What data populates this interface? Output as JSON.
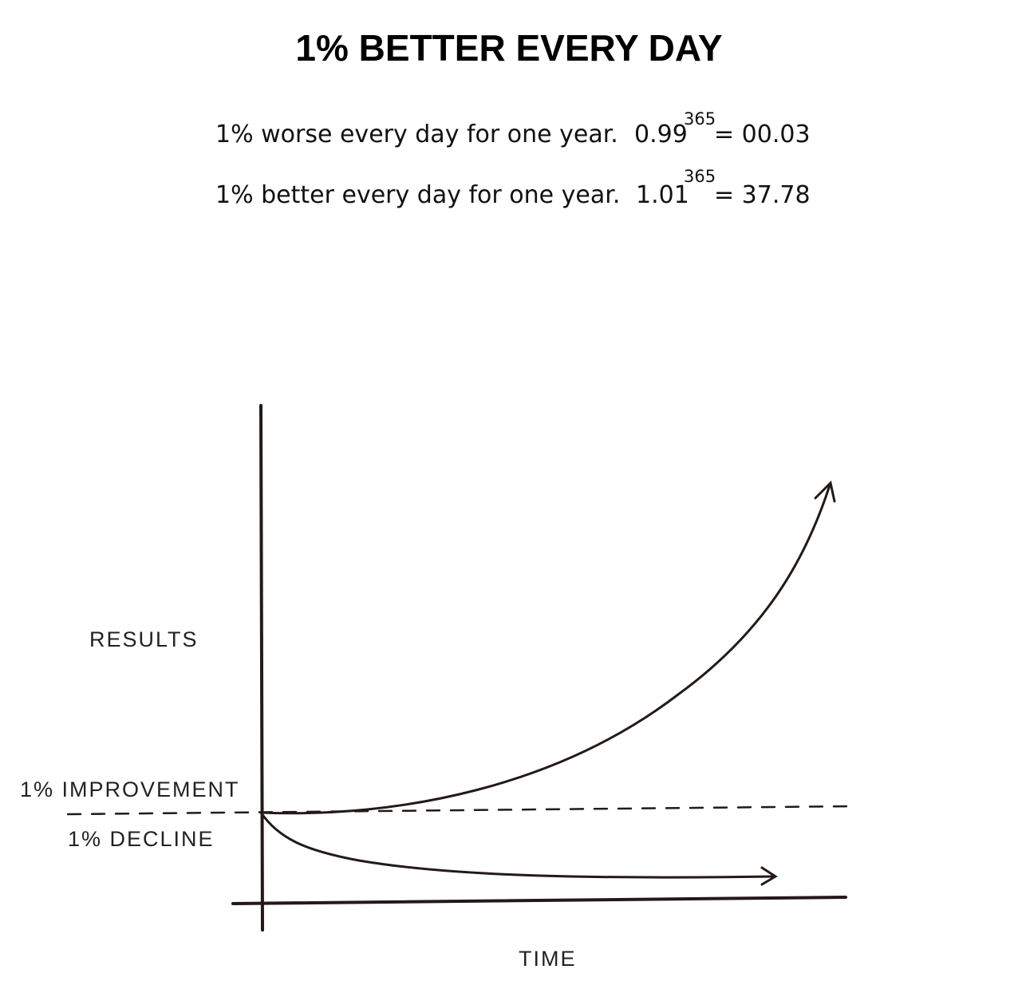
{
  "title": "1% BETTER EVERY DAY",
  "equations": [
    {
      "text": "1% worse every day for one year.",
      "base": "0.99",
      "exponent": "365",
      "result": "= 00.03"
    },
    {
      "text": "1% better every day for one year.",
      "base": "1.01",
      "exponent": "365",
      "result": "= 37.78"
    }
  ],
  "graph": {
    "y_label": "RESULTS",
    "x_label": "TIME",
    "upper_label": "1% IMPROVEMENT",
    "lower_label": "1% DECLINE"
  }
}
